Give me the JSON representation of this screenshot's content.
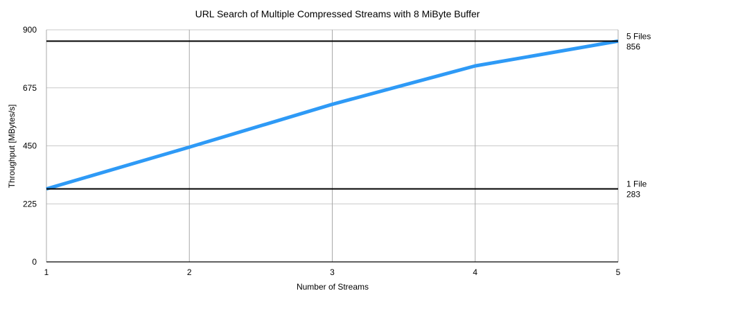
{
  "chart_data": {
    "type": "line",
    "title": "URL Search of Multiple Compressed Streams with 8 MiByte Buffer",
    "xlabel": "Number of Streams",
    "ylabel": "Throughput [MBytes/s]",
    "x": [
      1,
      2,
      3,
      4,
      5
    ],
    "x_ticks": [
      "1",
      "2",
      "3",
      "4",
      "5"
    ],
    "y_ticks": [
      "0",
      "225",
      "450",
      "675",
      "900"
    ],
    "ylim": [
      0,
      900
    ],
    "xlim": [
      1,
      5
    ],
    "grid": true,
    "series": [
      {
        "values": [
          283,
          445,
          611,
          760,
          856
        ],
        "color": "#2e9af6"
      }
    ],
    "reference_lines": [
      {
        "label": "5 Files",
        "value_label": "856",
        "value": 856,
        "color": "#000000"
      },
      {
        "label": "1 File",
        "value_label": "283",
        "value": 283,
        "color": "#000000"
      }
    ]
  }
}
